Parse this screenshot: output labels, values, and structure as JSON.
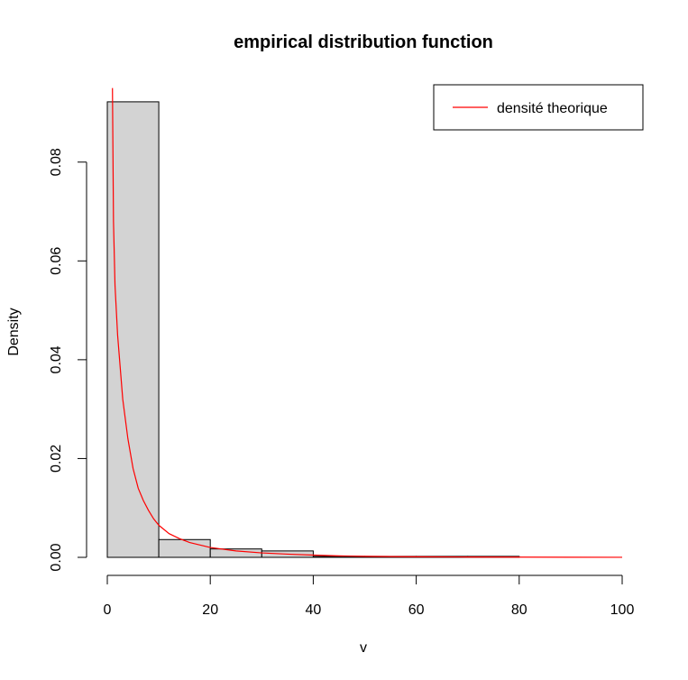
{
  "chart_data": {
    "type": "bar",
    "title": "empirical distribution function",
    "xlabel": "v",
    "ylabel": "Density",
    "xlim": [
      0,
      100
    ],
    "ylim": [
      0,
      0.092
    ],
    "x_ticks": [
      "0",
      "20",
      "40",
      "60",
      "80",
      "100"
    ],
    "x_tick_values": [
      0,
      20,
      40,
      60,
      80,
      100
    ],
    "y_ticks": [
      "0.00",
      "0.02",
      "0.04",
      "0.06",
      "0.08"
    ],
    "y_tick_values": [
      0,
      0.02,
      0.04,
      0.06,
      0.08
    ],
    "bins": [
      {
        "start": 0,
        "end": 10,
        "value": 0.0922
      },
      {
        "start": 10,
        "end": 20,
        "value": 0.0036
      },
      {
        "start": 20,
        "end": 30,
        "value": 0.0017
      },
      {
        "start": 30,
        "end": 40,
        "value": 0.0013
      },
      {
        "start": 40,
        "end": 50,
        "value": 0.0002
      },
      {
        "start": 50,
        "end": 60,
        "value": 0.0002
      },
      {
        "start": 60,
        "end": 70,
        "value": 0.0002
      },
      {
        "start": 70,
        "end": 80,
        "value": 0.0002
      }
    ],
    "series": [
      {
        "name": "densité theorique",
        "type": "line",
        "color": "#ff0000",
        "x": [
          1,
          1.2,
          1.5,
          2,
          3,
          4,
          5,
          6,
          7,
          8,
          9,
          10,
          12,
          14,
          16,
          18,
          20,
          25,
          30,
          35,
          40,
          45,
          50,
          60,
          70,
          80,
          90,
          100
        ],
        "y": [
          0.095,
          0.068,
          0.055,
          0.045,
          0.032,
          0.024,
          0.018,
          0.014,
          0.0115,
          0.0095,
          0.0078,
          0.0065,
          0.0048,
          0.0038,
          0.003,
          0.0025,
          0.002,
          0.0013,
          0.0009,
          0.00065,
          0.00045,
          0.0003,
          0.0002,
          0.00012,
          7e-05,
          4e-05,
          2e-05,
          1e-05
        ]
      }
    ],
    "legend": {
      "position": "top-right",
      "entries": [
        {
          "label": "densité theorique",
          "color": "#ff0000"
        }
      ]
    },
    "bar_fill": "#d3d3d3",
    "bar_stroke": "#000000",
    "grid": false
  }
}
